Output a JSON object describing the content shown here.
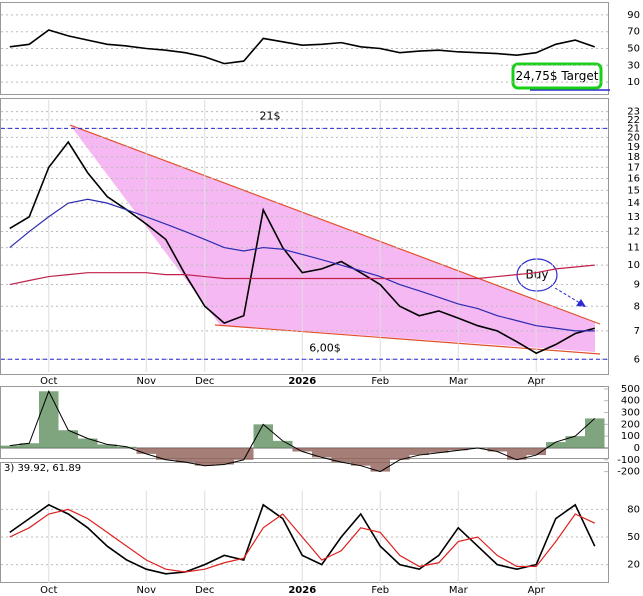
{
  "chart_data": [
    {
      "type": "line",
      "ylim": [
        0,
        100
      ],
      "yticks": [
        90,
        70,
        50,
        30,
        10
      ],
      "grid": true,
      "series": [
        {
          "color": "#000000",
          "values": [
            52,
            55,
            72,
            65,
            60,
            55,
            53,
            50,
            48,
            45,
            40,
            32,
            35,
            62,
            58,
            54,
            55,
            57,
            52,
            50,
            45,
            47,
            48,
            46,
            45,
            44,
            42,
            45,
            55,
            60,
            52
          ]
        }
      ]
    },
    {
      "type": "line",
      "log": true,
      "ylim": [
        5.6,
        24.5
      ],
      "yticks": [
        6,
        7,
        8,
        9,
        10,
        11,
        12,
        13,
        14,
        15,
        16,
        17,
        18,
        19,
        20,
        21,
        22,
        23
      ],
      "grid": true,
      "categories": [
        null,
        null,
        "Oct",
        null,
        null,
        null,
        null,
        "Nov",
        null,
        null,
        "Dec",
        null,
        null,
        null,
        null,
        "2026",
        null,
        null,
        null,
        "Feb",
        null,
        null,
        null,
        "Mar",
        null,
        null,
        null,
        "Apr",
        null,
        null,
        null
      ],
      "series": [
        {
          "color": "#000000",
          "values": [
            12.2,
            13,
            17,
            19.5,
            16.5,
            14.5,
            13.5,
            12.5,
            11.5,
            9.5,
            8,
            7.3,
            7.6,
            13.5,
            11,
            9.6,
            9.8,
            10.2,
            9.6,
            9,
            8,
            7.6,
            7.8,
            7.5,
            7.2,
            7,
            6.6,
            6.2,
            6.5,
            6.9,
            7.1
          ]
        },
        {
          "color": "#2b2bb0",
          "values": [
            11,
            12,
            13,
            14,
            14.3,
            14,
            13.5,
            13,
            12.5,
            12,
            11.5,
            11,
            10.8,
            11,
            10.9,
            10.6,
            10.3,
            10,
            9.7,
            9.4,
            9,
            8.7,
            8.4,
            8.1,
            7.9,
            7.6,
            7.4,
            7.2,
            7.1,
            7.0,
            7.0
          ]
        },
        {
          "color": "#c0204a",
          "values": [
            9,
            9.2,
            9.4,
            9.5,
            9.6,
            9.6,
            9.6,
            9.6,
            9.5,
            9.5,
            9.4,
            9.3,
            9.3,
            9.3,
            9.3,
            9.3,
            9.3,
            9.3,
            9.3,
            9.3,
            9.3,
            9.3,
            9.3,
            9.3,
            9.3,
            9.4,
            9.5,
            9.6,
            9.8,
            9.9,
            10
          ]
        }
      ],
      "levels": [
        {
          "value": 21,
          "label": "21$"
        },
        {
          "value": 6,
          "label": "6,00$"
        }
      ],
      "buy": "Buy",
      "target": "24,75$ Target"
    },
    {
      "type": "bar",
      "ylim": [
        -250,
        550
      ],
      "yticks": [
        500,
        400,
        300,
        200,
        100,
        0,
        -100,
        -200
      ],
      "values": [
        20,
        40,
        480,
        150,
        80,
        30,
        10,
        -50,
        -100,
        -120,
        -150,
        -140,
        -100,
        200,
        60,
        -30,
        -80,
        -120,
        -150,
        -200,
        -100,
        -60,
        -40,
        -20,
        0,
        -30,
        -100,
        -60,
        50,
        100,
        250
      ]
    },
    {
      "type": "line",
      "title": "3) 39.92, 61.89",
      "ylim": [
        0,
        100
      ],
      "yticks": [
        80,
        50,
        20
      ],
      "grid": true,
      "categories": [
        null,
        null,
        "Oct",
        null,
        null,
        null,
        null,
        "Nov",
        null,
        null,
        "Dec",
        null,
        null,
        null,
        null,
        "2026",
        null,
        null,
        null,
        "Feb",
        null,
        null,
        null,
        "Mar",
        null,
        null,
        null,
        "Apr",
        null,
        null,
        null
      ],
      "series": [
        {
          "color": "#000000",
          "values": [
            55,
            70,
            85,
            75,
            60,
            40,
            25,
            15,
            10,
            12,
            20,
            30,
            25,
            85,
            70,
            30,
            20,
            50,
            75,
            40,
            20,
            15,
            30,
            60,
            40,
            20,
            15,
            20,
            70,
            85,
            40
          ]
        },
        {
          "color": "#e02020",
          "values": [
            50,
            60,
            75,
            80,
            70,
            55,
            40,
            25,
            15,
            12,
            15,
            22,
            27,
            60,
            75,
            50,
            25,
            35,
            60,
            55,
            30,
            18,
            22,
            45,
            50,
            30,
            18,
            18,
            45,
            75,
            65
          ]
        }
      ]
    }
  ]
}
